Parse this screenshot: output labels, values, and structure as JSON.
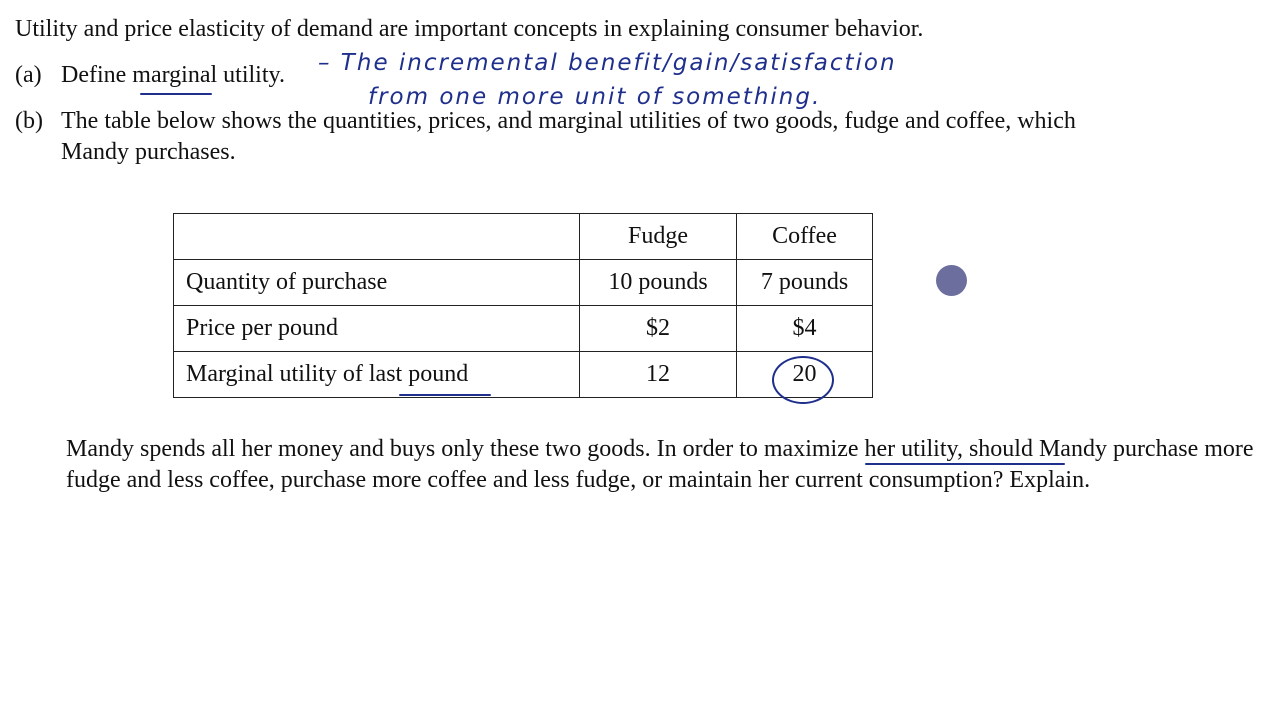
{
  "question": {
    "intro": "Utility and price elasticity of demand are important concepts in explaining consumer behavior.",
    "part_a_label": "(a)",
    "part_a_text": "Define marginal utility.",
    "part_b_label": "(b)",
    "part_b_line1": "The table below shows the quantities, prices, and marginal utilities of two goods, fudge and coffee, which",
    "part_b_line2": "Mandy purchases.",
    "followup": "Mandy spends all her money and buys only these two goods. In order to maximize her utility, should Mandy purchase more fudge and less coffee, purchase more coffee and less fudge, or maintain her current consumption? Explain."
  },
  "annotation": {
    "line1": "– The incremental benefit/gain/satisfaction",
    "line2": "from one more unit of something.",
    "ink_color": "#1f2f8c",
    "pointer_color": "#6c6f9e"
  },
  "table": {
    "headers": [
      "",
      "Fudge",
      "Coffee"
    ],
    "rows": [
      [
        "Quantity of purchase",
        "10 pounds",
        "7 pounds"
      ],
      [
        "Price per pound",
        "$2",
        "$4"
      ],
      [
        "Marginal utility of last pound",
        "12",
        "20"
      ]
    ]
  }
}
